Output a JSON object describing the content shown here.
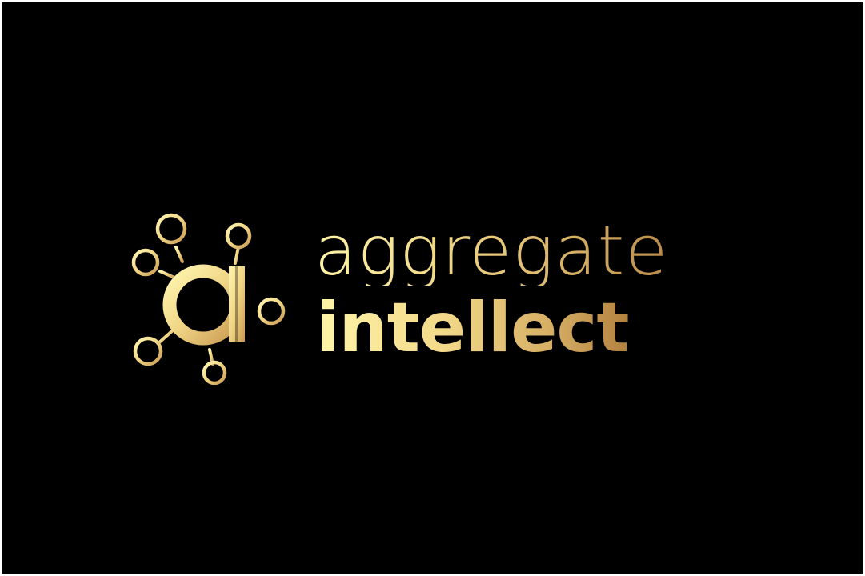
{
  "logo": {
    "icon_name": "ai-network-icon",
    "line1": "aggregate",
    "line2": "intellect"
  },
  "colors": {
    "background": "#000000",
    "frame": "#ffffff",
    "gold_light": "#fff4a8",
    "gold_mid": "#e6c57a",
    "gold_dark": "#b3813f"
  }
}
